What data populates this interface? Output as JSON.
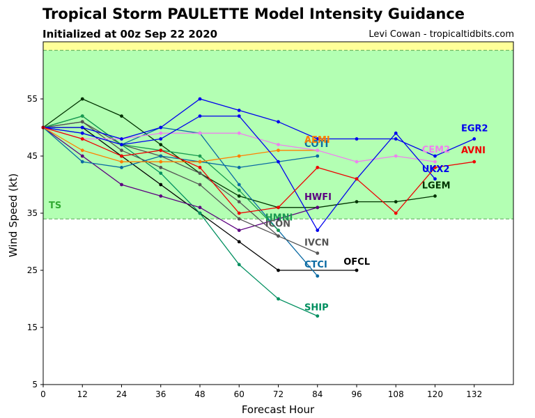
{
  "header": {
    "title": "Tropical Storm PAULETTE Model Intensity Guidance",
    "subtitle": "Initialized at 00z Sep 22 2020",
    "credit": "Levi Cowan - tropicaltidbits.com"
  },
  "chart_data": {
    "type": "line",
    "xlabel": "Forecast Hour",
    "ylabel": "Wind Speed (kt)",
    "xlim": [
      0,
      144
    ],
    "ylim": [
      5,
      65
    ],
    "xticks": [
      0,
      12,
      24,
      36,
      48,
      60,
      72,
      84,
      96,
      108,
      120,
      132
    ],
    "yticks": [
      5,
      15,
      25,
      35,
      45,
      55
    ],
    "grid": false,
    "bands": [
      {
        "label": "TS",
        "ymin": 34,
        "ymax": 63.5,
        "color": "#b3ffb3",
        "label_color": "#33aa33"
      },
      {
        "label": "",
        "ymin": 63.5,
        "ymax": 65,
        "color": "#ffff99",
        "label_color": "#999900"
      }
    ],
    "series": [
      {
        "name": "OFCL",
        "color": "#000000",
        "label_color": "#000000",
        "x": [
          0,
          12,
          24,
          36,
          48,
          60,
          72,
          96
        ],
        "y": [
          50,
          50,
          45,
          40,
          35,
          30,
          25,
          25
        ],
        "label_at": [
          92,
          26
        ]
      },
      {
        "name": "SHIP",
        "color": "#008f5f",
        "label_color": "#008f5f",
        "x": [
          0,
          12,
          24,
          36,
          48,
          60,
          72,
          84
        ],
        "y": [
          50,
          52,
          47,
          42,
          35,
          26,
          20,
          17
        ],
        "label_at": [
          80,
          18
        ]
      },
      {
        "name": "LGEM",
        "color": "#003300",
        "label_color": "#003300",
        "x": [
          0,
          12,
          24,
          36,
          48,
          60,
          72,
          84,
          96,
          108,
          120
        ],
        "y": [
          50,
          55,
          52,
          47,
          42,
          38,
          36,
          36,
          37,
          37,
          38
        ],
        "label_at": [
          116,
          39.3
        ]
      },
      {
        "name": "HWFI",
        "color": "#5c0080",
        "label_color": "#5c0080",
        "x": [
          0,
          12,
          24,
          36,
          48,
          60,
          72,
          84
        ],
        "y": [
          50,
          45,
          40,
          38,
          36,
          32,
          34,
          36
        ],
        "label_at": [
          80,
          37.3
        ]
      },
      {
        "name": "CTCI",
        "color": "#0a6aa3",
        "label_color": "#0a6aa3",
        "x": [
          0,
          12,
          24,
          36,
          48,
          60,
          72,
          84
        ],
        "y": [
          50,
          49,
          47,
          50,
          49,
          40,
          32,
          24
        ],
        "label_at": [
          80,
          25.5
        ]
      },
      {
        "name": "IVCN",
        "color": "#555555",
        "label_color": "#555555",
        "x": [
          0,
          12,
          24,
          36,
          48,
          60,
          72,
          84
        ],
        "y": [
          50,
          51,
          46,
          43,
          40,
          34,
          31,
          28
        ],
        "label_at": [
          80,
          29.3
        ]
      },
      {
        "name": "ICON",
        "color": "#555555",
        "label_color": "#555555",
        "x": [
          0,
          12,
          24,
          36,
          48,
          60,
          72
        ],
        "y": [
          50,
          51,
          47,
          45,
          42,
          37,
          31
        ],
        "label_at": [
          68,
          32.6
        ]
      },
      {
        "name": "HMNI",
        "color": "#1a9a50",
        "label_color": "#1a9a50",
        "x": [
          0,
          12,
          24,
          36,
          48,
          60,
          72
        ],
        "y": [
          50,
          52,
          47,
          46,
          45,
          39,
          32
        ],
        "label_at": [
          68,
          33.7
        ]
      },
      {
        "name": "COTI",
        "color": "#0a6aa3",
        "label_color": "#0a6aa3",
        "x": [
          0,
          12,
          24,
          36,
          48,
          60,
          84
        ],
        "y": [
          50,
          44,
          43,
          45,
          44,
          43,
          45
        ],
        "label_at": [
          80,
          46.6
        ]
      },
      {
        "name": "AEMI",
        "color": "#ff7f00",
        "label_color": "#ff7f00",
        "x": [
          0,
          12,
          24,
          36,
          48,
          60,
          72,
          84
        ],
        "y": [
          50,
          46,
          44,
          44,
          44,
          45,
          46,
          46
        ],
        "label_at": [
          80,
          47.3
        ]
      },
      {
        "name": "CEM2",
        "color": "#ee82ee",
        "label_color": "#ee82ee",
        "x": [
          0,
          12,
          24,
          36,
          48,
          60,
          72,
          84,
          96,
          108,
          120
        ],
        "y": [
          50,
          48,
          48,
          49,
          49,
          49,
          47,
          46,
          44,
          45,
          44
        ],
        "label_at": [
          116,
          45.6
        ]
      },
      {
        "name": "UKX2",
        "color": "#0000ee",
        "label_color": "#0000ee",
        "x": [
          0,
          12,
          24,
          36,
          48,
          60,
          72,
          84,
          96,
          108,
          120
        ],
        "y": [
          50,
          49,
          47,
          48,
          52,
          52,
          44,
          32,
          41,
          49,
          41
        ],
        "label_at": [
          116,
          42.2
        ]
      },
      {
        "name": "EGR2",
        "color": "#0000ee",
        "label_color": "#0000ee",
        "x": [
          0,
          12,
          24,
          36,
          48,
          60,
          72,
          84,
          96,
          108,
          120,
          132
        ],
        "y": [
          50,
          50,
          48,
          50,
          55,
          53,
          51,
          48,
          48,
          48,
          45,
          48
        ],
        "label_at": [
          128,
          49.3
        ]
      },
      {
        "name": "AVNI",
        "color": "#ee0000",
        "label_color": "#ee0000",
        "x": [
          0,
          12,
          24,
          36,
          48,
          60,
          72,
          84,
          96,
          108,
          120,
          132
        ],
        "y": [
          50,
          48,
          45,
          46,
          43,
          35,
          36,
          43,
          41,
          35,
          43,
          44
        ],
        "label_at": [
          128,
          45.5
        ]
      }
    ]
  }
}
